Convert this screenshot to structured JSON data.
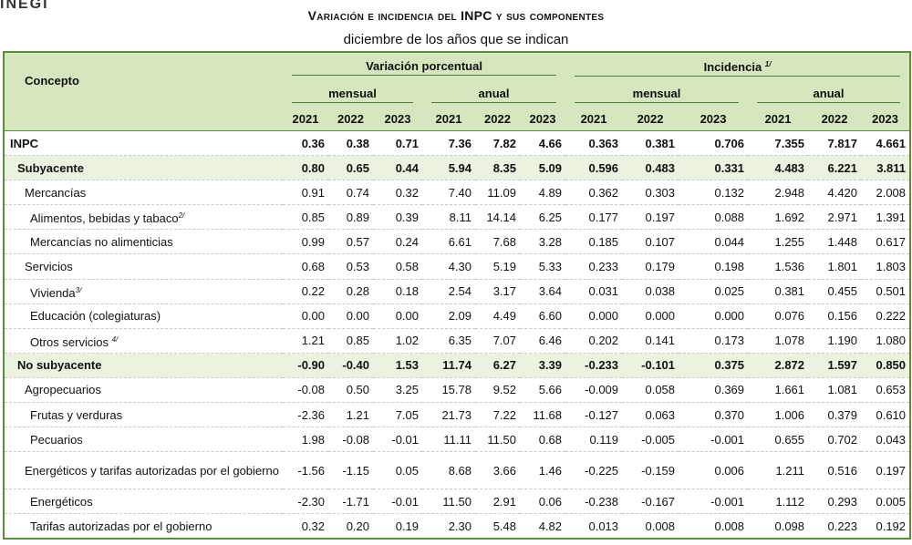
{
  "title": "Variación e incidencia del INPC y sus componentes",
  "subtitle": "diciembre de los años que se indican",
  "headers": {
    "concepto": "Concepto",
    "variacion": "Variación porcentual",
    "incidencia": "Incidencia",
    "incidencia_note": "1/",
    "mensual": "mensual",
    "anual": "anual",
    "years": [
      "2021",
      "2022",
      "2023"
    ]
  },
  "rows": [
    {
      "label": "INPC",
      "note": "",
      "values": [
        "0.36",
        "0.38",
        "0.71",
        "7.36",
        "7.82",
        "4.66",
        "0.363",
        "0.381",
        "0.706",
        "7.355",
        "7.817",
        "4.661"
      ]
    },
    {
      "label": "Subyacente",
      "note": "",
      "values": [
        "0.80",
        "0.65",
        "0.44",
        "5.94",
        "8.35",
        "5.09",
        "0.596",
        "0.483",
        "0.331",
        "4.483",
        "6.221",
        "3.811"
      ]
    },
    {
      "label": "Mercancías",
      "note": "",
      "values": [
        "0.91",
        "0.74",
        "0.32",
        "7.40",
        "11.09",
        "4.89",
        "0.362",
        "0.303",
        "0.132",
        "2.948",
        "4.420",
        "2.008"
      ]
    },
    {
      "label": "Alimentos, bebidas y tabaco",
      "note": "2/",
      "values": [
        "0.85",
        "0.89",
        "0.39",
        "8.11",
        "14.14",
        "6.25",
        "0.177",
        "0.197",
        "0.088",
        "1.692",
        "2.971",
        "1.391"
      ]
    },
    {
      "label": "Mercancías no alimenticias",
      "note": "",
      "values": [
        "0.99",
        "0.57",
        "0.24",
        "6.61",
        "7.68",
        "3.28",
        "0.185",
        "0.107",
        "0.044",
        "1.255",
        "1.448",
        "0.617"
      ]
    },
    {
      "label": "Servicios",
      "note": "",
      "values": [
        "0.68",
        "0.53",
        "0.58",
        "4.30",
        "5.19",
        "5.33",
        "0.233",
        "0.179",
        "0.198",
        "1.536",
        "1.801",
        "1.803"
      ]
    },
    {
      "label": "Vivienda",
      "note": "3/",
      "values": [
        "0.22",
        "0.28",
        "0.18",
        "2.54",
        "3.17",
        "3.64",
        "0.031",
        "0.038",
        "0.025",
        "0.381",
        "0.455",
        "0.501"
      ]
    },
    {
      "label": "Educación (colegiaturas)",
      "note": "",
      "values": [
        "0.00",
        "0.00",
        "0.00",
        "2.09",
        "4.49",
        "6.60",
        "0.000",
        "0.000",
        "0.000",
        "0.076",
        "0.156",
        "0.222"
      ]
    },
    {
      "label": "Otros servicios ",
      "note": "4/",
      "values": [
        "1.21",
        "0.85",
        "1.02",
        "6.35",
        "7.07",
        "6.46",
        "0.202",
        "0.141",
        "0.173",
        "1.078",
        "1.190",
        "1.080"
      ]
    },
    {
      "label": "No subyacente",
      "note": "",
      "values": [
        "-0.90",
        "-0.40",
        "1.53",
        "11.74",
        "6.27",
        "3.39",
        "-0.233",
        "-0.101",
        "0.375",
        "2.872",
        "1.597",
        "0.850"
      ]
    },
    {
      "label": "Agropecuarios",
      "note": "",
      "values": [
        "-0.08",
        "0.50",
        "3.25",
        "15.78",
        "9.52",
        "5.66",
        "-0.009",
        "0.058",
        "0.369",
        "1.661",
        "1.081",
        "0.653"
      ]
    },
    {
      "label": "Frutas y verduras",
      "note": "",
      "values": [
        "-2.36",
        "1.21",
        "7.05",
        "21.73",
        "7.22",
        "11.68",
        "-0.127",
        "0.063",
        "0.370",
        "1.006",
        "0.379",
        "0.610"
      ]
    },
    {
      "label": "Pecuarios",
      "note": "",
      "values": [
        "1.98",
        "-0.08",
        "-0.01",
        "11.11",
        "11.50",
        "0.68",
        "0.119",
        "-0.005",
        "-0.001",
        "0.655",
        "0.702",
        "0.043"
      ]
    },
    {
      "label": "Energéticos y tarifas autorizadas por el gobierno",
      "note": "",
      "values": [
        "-1.56",
        "-1.15",
        "0.05",
        "8.68",
        "3.66",
        "1.46",
        "-0.225",
        "-0.159",
        "0.006",
        "1.211",
        "0.516",
        "0.197"
      ]
    },
    {
      "label": "Energéticos",
      "note": "",
      "values": [
        "-2.30",
        "-1.71",
        "-0.01",
        "11.50",
        "2.91",
        "0.06",
        "-0.238",
        "-0.167",
        "-0.001",
        "1.112",
        "0.293",
        "0.005"
      ]
    },
    {
      "label": "Tarifas autorizadas por el gobierno",
      "note": "",
      "values": [
        "0.32",
        "0.20",
        "0.19",
        "2.30",
        "5.48",
        "4.82",
        "0.013",
        "0.008",
        "0.008",
        "0.098",
        "0.223",
        "0.192"
      ]
    }
  ]
}
